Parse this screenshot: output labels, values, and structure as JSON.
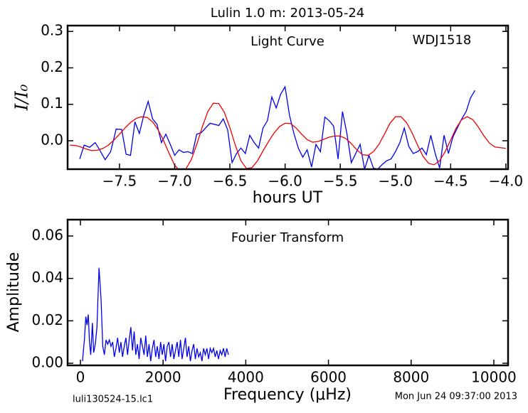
{
  "chart_data": [
    {
      "type": "line",
      "title": "Lulin 1.0 m:  2013-05-24",
      "xlabel": "hours UT",
      "ylabel": "I/I₀",
      "annotations": [
        "Light Curve",
        "WDJ1518"
      ],
      "xlim": [
        -7.97,
        -3.98
      ],
      "ylim": [
        -0.078,
        0.316
      ],
      "xticks": [
        {
          "value": -7.5,
          "label": "−7.5"
        },
        {
          "value": -7.0,
          "label": "−7.0"
        },
        {
          "value": -6.5,
          "label": "−6.5"
        },
        {
          "value": -6.0,
          "label": "−6.0"
        },
        {
          "value": -5.5,
          "label": "−5.5"
        },
        {
          "value": -5.0,
          "label": "−5.0"
        },
        {
          "value": -4.5,
          "label": "−4.5"
        },
        {
          "value": -4.0,
          "label": "−4.0"
        }
      ],
      "yticks": [
        {
          "value": 0,
          "label": "0.0"
        },
        0.1,
        0.2,
        0.3
      ],
      "series": [
        {
          "color": "#0000ee",
          "x": [
            -7.86,
            -7.82,
            -7.77,
            -7.72,
            -7.68,
            -7.63,
            -7.58,
            -7.53,
            -7.48,
            -7.44,
            -7.4,
            -7.36,
            -7.32,
            -7.28,
            -7.24,
            -7.2,
            -7.16,
            -7.12,
            -7.08,
            -7.04,
            -7.0,
            -6.96,
            -6.92,
            -6.88,
            -6.84,
            -6.8,
            -6.76,
            -6.72,
            -6.68,
            -6.64,
            -6.6,
            -6.56,
            -6.52,
            -6.48,
            -6.44,
            -6.4,
            -6.36,
            -6.32,
            -6.28,
            -6.24,
            -6.2,
            -6.16,
            -6.12,
            -6.08,
            -6.04,
            -6.0,
            -5.96,
            -5.92,
            -5.88,
            -5.84,
            -5.8,
            -5.76,
            -5.72,
            -5.68,
            -5.64,
            -5.6,
            -5.56,
            -5.52,
            -5.48,
            -5.44,
            -5.4,
            -5.36,
            -5.32,
            -5.28,
            -5.24,
            -5.2,
            -5.16,
            -5.12,
            -5.08,
            -5.04,
            -5.0,
            -4.96,
            -4.92,
            -4.88,
            -4.84,
            -4.8,
            -4.76,
            -4.72,
            -4.68,
            -4.64,
            -4.6,
            -4.56,
            -4.52,
            -4.48,
            -4.44,
            -4.4,
            -4.36,
            -4.32,
            -4.28
          ],
          "values": [
            -0.05,
            -0.012,
            -0.018,
            -0.005,
            -0.025,
            -0.052,
            -0.03,
            0.032,
            0.031,
            -0.037,
            -0.04,
            0.052,
            0.02,
            0.07,
            0.108,
            0.06,
            0.045,
            -0.005,
            0.018,
            -0.01,
            -0.04,
            -0.025,
            -0.032,
            -0.03,
            -0.035,
            0.018,
            0.022,
            0.035,
            0.048,
            0.045,
            0.042,
            0.06,
            0.03,
            -0.06,
            -0.035,
            -0.02,
            -0.035,
            0.015,
            -0.005,
            -0.02,
            0.035,
            0.055,
            0.12,
            0.09,
            0.128,
            0.148,
            0.07,
            0.02,
            -0.02,
            -0.045,
            -0.025,
            -0.072,
            -0.01,
            -0.03,
            0.065,
            0.055,
            0.04,
            -0.05,
            0.08,
            0.02,
            -0.06,
            -0.035,
            -0.01,
            -0.078,
            -0.04,
            -0.075,
            -0.078,
            -0.065,
            -0.055,
            -0.05,
            -0.03,
            -0.005,
            0.035,
            -0.015,
            -0.035,
            -0.03,
            -0.02,
            -0.038,
            0.015,
            -0.035,
            -0.075,
            0.015,
            -0.035,
            0.01,
            0.035,
            0.06,
            0.08,
            0.118,
            0.138
          ]
        },
        {
          "color": "#ee0000",
          "x": [
            -7.95,
            -7.9,
            -7.85,
            -7.8,
            -7.75,
            -7.7,
            -7.65,
            -7.6,
            -7.55,
            -7.5,
            -7.45,
            -7.4,
            -7.35,
            -7.3,
            -7.25,
            -7.2,
            -7.15,
            -7.1,
            -7.05,
            -7.0,
            -6.95,
            -6.9,
            -6.85,
            -6.8,
            -6.75,
            -6.7,
            -6.65,
            -6.6,
            -6.55,
            -6.5,
            -6.45,
            -6.4,
            -6.35,
            -6.3,
            -6.25,
            -6.2,
            -6.15,
            -6.1,
            -6.05,
            -6.0,
            -5.95,
            -5.9,
            -5.85,
            -5.8,
            -5.75,
            -5.7,
            -5.65,
            -5.6,
            -5.55,
            -5.5,
            -5.45,
            -5.4,
            -5.35,
            -5.3,
            -5.25,
            -5.2,
            -5.15,
            -5.1,
            -5.05,
            -5.0,
            -4.95,
            -4.9,
            -4.85,
            -4.8,
            -4.75,
            -4.7,
            -4.65,
            -4.6,
            -4.55,
            -4.5,
            -4.45,
            -4.4,
            -4.35,
            -4.3,
            -4.25,
            -4.2,
            -4.15,
            -4.1,
            -4.05,
            -4.0
          ],
          "values": [
            -0.012,
            -0.013,
            -0.017,
            -0.023,
            -0.027,
            -0.026,
            -0.021,
            -0.012,
            0.002,
            0.018,
            0.035,
            0.05,
            0.061,
            0.066,
            0.064,
            0.052,
            0.03,
            0.0,
            -0.035,
            -0.067,
            -0.084,
            -0.078,
            -0.052,
            -0.01,
            0.038,
            0.08,
            0.103,
            0.102,
            0.078,
            0.036,
            -0.013,
            -0.055,
            -0.076,
            -0.074,
            -0.055,
            -0.028,
            -0.002,
            0.021,
            0.039,
            0.048,
            0.047,
            0.035,
            0.018,
            0.003,
            -0.004,
            -0.002,
            0.004,
            0.01,
            0.013,
            0.013,
            0.006,
            -0.008,
            -0.025,
            -0.038,
            -0.04,
            -0.03,
            -0.01,
            0.018,
            0.048,
            0.066,
            0.066,
            0.05,
            0.022,
            -0.012,
            -0.043,
            -0.062,
            -0.066,
            -0.055,
            -0.03,
            0.002,
            0.035,
            0.058,
            0.066,
            0.058,
            0.038,
            0.014,
            -0.006,
            -0.017,
            -0.019,
            -0.021
          ]
        }
      ]
    },
    {
      "type": "line",
      "xlabel": "Frequency (μHz)",
      "ylabel": "Amplitude",
      "annotations": [
        "Fourier Transform"
      ],
      "xlim": [
        -310,
        10345
      ],
      "ylim": [
        -0.001,
        0.0677
      ],
      "xticks": [
        0,
        2000,
        4000,
        6000,
        8000,
        10000
      ],
      "yticks": [
        {
          "value": 0,
          "label": "0.00"
        },
        0.02,
        0.04,
        0.06
      ],
      "series": [
        {
          "color": "#0000ee",
          "x": [
            50,
            100,
            130,
            160,
            190,
            220,
            250,
            290,
            320,
            360,
            400,
            450,
            500,
            540,
            580,
            620,
            660,
            700,
            740,
            780,
            820,
            860,
            900,
            940,
            980,
            1020,
            1060,
            1100,
            1140,
            1180,
            1220,
            1260,
            1300,
            1340,
            1380,
            1420,
            1460,
            1500,
            1540,
            1580,
            1620,
            1660,
            1700,
            1740,
            1780,
            1820,
            1860,
            1900,
            1940,
            1980,
            2020,
            2060,
            2100,
            2140,
            2180,
            2220,
            2260,
            2300,
            2340,
            2380,
            2420,
            2460,
            2500,
            2540,
            2580,
            2620,
            2660,
            2700,
            2740,
            2780,
            2820,
            2860,
            2900,
            2940,
            2980,
            3020,
            3060,
            3100,
            3140,
            3180,
            3220,
            3260,
            3300,
            3340,
            3380,
            3420,
            3460,
            3500,
            3540,
            3580
          ],
          "values": [
            0.001,
            0.012,
            0.022,
            0.018,
            0.023,
            0.01,
            0.004,
            0.019,
            0.005,
            0.009,
            0.017,
            0.045,
            0.03,
            0.008,
            0.004,
            0.011,
            0.009,
            0.011,
            0.008,
            0.01,
            0.003,
            0.007,
            0.012,
            0.005,
            0.01,
            0.003,
            0.008,
            0.012,
            0.004,
            0.011,
            0.017,
            0.006,
            0.015,
            0.004,
            0.009,
            0.002,
            0.012,
            0.008,
            0.004,
            0.013,
            0.003,
            0.009,
            0.001,
            0.007,
            0.011,
            0.003,
            0.008,
            0.002,
            0.01,
            0.004,
            0.009,
            0.001,
            0.008,
            0.01,
            0.003,
            0.009,
            0.002,
            0.006,
            0.01,
            0.003,
            0.011,
            0.002,
            0.007,
            0.012,
            0.003,
            0.008,
            0.001,
            0.006,
            0.009,
            0.002,
            0.007,
            0.003,
            0.005,
            0.001,
            0.007,
            0.004,
            0.007,
            0.002,
            0.007,
            0.005,
            0.007,
            0.003,
            0.006,
            0.002,
            0.006,
            0.004,
            0.007,
            0.003,
            0.007,
            0.004
          ]
        }
      ]
    }
  ],
  "footer": {
    "left": "luli130524-15.lc1",
    "right": "Mon Jun 24 09:37:00 2013"
  }
}
